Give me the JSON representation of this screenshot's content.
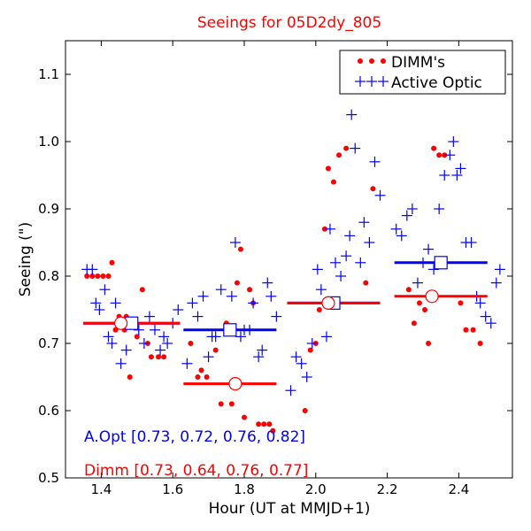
{
  "chart_data": {
    "type": "scatter",
    "title": "Seeings for 05D2dy_805",
    "xlabel": "Hour (UT at MMJD+1)",
    "ylabel": "Seeing (\")",
    "xlim": [
      1.3,
      2.55
    ],
    "ylim": [
      0.5,
      1.15
    ],
    "xticks": [
      1.4,
      1.6,
      1.8,
      2.0,
      2.2,
      2.4
    ],
    "xtick_labels": [
      "1.4",
      "1.6",
      "1.8",
      "2.0",
      "2.2",
      "2.4"
    ],
    "yticks": [
      0.5,
      0.6,
      0.7,
      0.8,
      0.9,
      1.0,
      1.1
    ],
    "ytick_labels": [
      "0.5",
      "0.6",
      "0.7",
      "0.8",
      "0.9",
      "1.0",
      "1.1"
    ],
    "legend": [
      {
        "name": "DIMM's",
        "color": "#ff0000",
        "marker": "dot"
      },
      {
        "name": "Active Optic",
        "color": "#0000ff",
        "marker": "plus"
      }
    ],
    "legend_position": "top-right",
    "series": [
      {
        "name": "DIMM's",
        "color": "#ff0000",
        "marker": "dot",
        "points": [
          [
            1.36,
            0.8
          ],
          [
            1.375,
            0.8
          ],
          [
            1.39,
            0.8
          ],
          [
            1.405,
            0.8
          ],
          [
            1.42,
            0.8
          ],
          [
            1.43,
            0.82
          ],
          [
            1.44,
            0.72
          ],
          [
            1.45,
            0.74
          ],
          [
            1.465,
            0.72
          ],
          [
            1.47,
            0.74
          ],
          [
            1.48,
            0.65
          ],
          [
            1.5,
            0.71
          ],
          [
            1.515,
            0.78
          ],
          [
            1.53,
            0.7
          ],
          [
            1.54,
            0.68
          ],
          [
            1.56,
            0.68
          ],
          [
            1.575,
            0.68
          ],
          [
            1.65,
            0.7
          ],
          [
            1.67,
            0.65
          ],
          [
            1.68,
            0.66
          ],
          [
            1.695,
            0.65
          ],
          [
            1.72,
            0.69
          ],
          [
            1.735,
            0.61
          ],
          [
            1.75,
            0.73
          ],
          [
            1.765,
            0.61
          ],
          [
            1.78,
            0.79
          ],
          [
            1.79,
            0.84
          ],
          [
            1.8,
            0.59
          ],
          [
            1.815,
            0.78
          ],
          [
            1.825,
            0.76
          ],
          [
            1.84,
            0.58
          ],
          [
            1.855,
            0.58
          ],
          [
            1.87,
            0.58
          ],
          [
            1.88,
            0.57
          ],
          [
            1.97,
            0.6
          ],
          [
            1.985,
            0.69
          ],
          [
            2.0,
            0.7
          ],
          [
            2.01,
            0.75
          ],
          [
            2.025,
            0.87
          ],
          [
            2.035,
            0.96
          ],
          [
            2.05,
            0.94
          ],
          [
            2.065,
            0.98
          ],
          [
            2.085,
            0.99
          ],
          [
            2.14,
            0.79
          ],
          [
            2.16,
            0.93
          ],
          [
            2.26,
            0.78
          ],
          [
            2.275,
            0.73
          ],
          [
            2.29,
            0.76
          ],
          [
            2.305,
            0.75
          ],
          [
            2.315,
            0.7
          ],
          [
            2.33,
            0.99
          ],
          [
            2.345,
            0.98
          ],
          [
            2.36,
            0.98
          ],
          [
            2.405,
            0.76
          ],
          [
            2.42,
            0.72
          ],
          [
            2.44,
            0.72
          ],
          [
            2.46,
            0.7
          ]
        ]
      },
      {
        "name": "Active Optic",
        "color": "#0000ff",
        "marker": "plus",
        "points": [
          [
            1.36,
            0.81
          ],
          [
            1.375,
            0.81
          ],
          [
            1.385,
            0.76
          ],
          [
            1.395,
            0.75
          ],
          [
            1.41,
            0.78
          ],
          [
            1.42,
            0.71
          ],
          [
            1.43,
            0.7
          ],
          [
            1.44,
            0.76
          ],
          [
            1.455,
            0.67
          ],
          [
            1.47,
            0.69
          ],
          [
            1.49,
            0.73
          ],
          [
            1.505,
            0.72
          ],
          [
            1.52,
            0.7
          ],
          [
            1.535,
            0.74
          ],
          [
            1.55,
            0.72
          ],
          [
            1.565,
            0.69
          ],
          [
            1.575,
            0.71
          ],
          [
            1.585,
            0.7
          ],
          [
            1.6,
            0.73
          ],
          [
            1.615,
            0.75
          ],
          [
            1.64,
            0.67
          ],
          [
            1.655,
            0.76
          ],
          [
            1.67,
            0.74
          ],
          [
            1.685,
            0.77
          ],
          [
            1.7,
            0.68
          ],
          [
            1.71,
            0.71
          ],
          [
            1.72,
            0.71
          ],
          [
            1.735,
            0.78
          ],
          [
            1.75,
            0.72
          ],
          [
            1.765,
            0.77
          ],
          [
            1.775,
            0.85
          ],
          [
            1.79,
            0.71
          ],
          [
            1.8,
            0.72
          ],
          [
            1.815,
            0.72
          ],
          [
            1.825,
            0.76
          ],
          [
            1.84,
            0.68
          ],
          [
            1.85,
            0.69
          ],
          [
            1.865,
            0.79
          ],
          [
            1.875,
            0.77
          ],
          [
            1.89,
            0.74
          ],
          [
            1.93,
            0.63
          ],
          [
            1.945,
            0.68
          ],
          [
            1.96,
            0.67
          ],
          [
            1.975,
            0.65
          ],
          [
            1.99,
            0.7
          ],
          [
            2.005,
            0.81
          ],
          [
            2.015,
            0.78
          ],
          [
            2.03,
            0.71
          ],
          [
            2.04,
            0.87
          ],
          [
            2.055,
            0.82
          ],
          [
            2.07,
            0.8
          ],
          [
            2.085,
            0.83
          ],
          [
            2.095,
            0.86
          ],
          [
            2.1,
            1.04
          ],
          [
            2.11,
            0.99
          ],
          [
            2.125,
            0.82
          ],
          [
            2.135,
            0.88
          ],
          [
            2.15,
            0.85
          ],
          [
            2.165,
            0.97
          ],
          [
            2.18,
            0.92
          ],
          [
            2.225,
            0.87
          ],
          [
            2.24,
            0.86
          ],
          [
            2.255,
            0.89
          ],
          [
            2.27,
            0.9
          ],
          [
            2.285,
            0.79
          ],
          [
            2.3,
            0.82
          ],
          [
            2.315,
            0.84
          ],
          [
            2.33,
            0.81
          ],
          [
            2.345,
            0.9
          ],
          [
            2.36,
            0.95
          ],
          [
            2.375,
            0.98
          ],
          [
            2.385,
            1.0
          ],
          [
            2.395,
            0.95
          ],
          [
            2.405,
            0.96
          ],
          [
            2.42,
            0.85
          ],
          [
            2.435,
            0.85
          ],
          [
            2.45,
            0.77
          ],
          [
            2.46,
            0.76
          ],
          [
            2.475,
            0.74
          ],
          [
            2.49,
            0.73
          ],
          [
            2.505,
            0.79
          ],
          [
            2.515,
            0.81
          ]
        ]
      }
    ],
    "segments": [
      {
        "series": "Active Optic",
        "color": "#0000ff",
        "x_start": 1.35,
        "x_end": 1.62,
        "value": 0.73,
        "marker_x": 1.485,
        "marker": "square"
      },
      {
        "series": "Active Optic",
        "color": "#0000ff",
        "x_start": 1.63,
        "x_end": 1.89,
        "value": 0.72,
        "marker_x": 1.76,
        "marker": "square"
      },
      {
        "series": "Active Optic",
        "color": "#0000ff",
        "x_start": 1.92,
        "x_end": 2.18,
        "value": 0.76,
        "marker_x": 2.05,
        "marker": "square"
      },
      {
        "series": "Active Optic",
        "color": "#0000ff",
        "x_start": 2.22,
        "x_end": 2.48,
        "value": 0.82,
        "marker_x": 2.35,
        "marker": "square"
      },
      {
        "series": "DIMM's",
        "color": "#ff0000",
        "x_start": 1.35,
        "x_end": 1.62,
        "value": 0.73,
        "marker_x": 1.455,
        "marker": "circle"
      },
      {
        "series": "DIMM's",
        "color": "#ff0000",
        "x_start": 1.63,
        "x_end": 1.89,
        "value": 0.64,
        "marker_x": 1.775,
        "marker": "circle"
      },
      {
        "series": "DIMM's",
        "color": "#ff0000",
        "x_start": 1.92,
        "x_end": 2.18,
        "value": 0.76,
        "marker_x": 2.035,
        "marker": "circle"
      },
      {
        "series": "DIMM's",
        "color": "#ff0000",
        "x_start": 2.22,
        "x_end": 2.48,
        "value": 0.77,
        "marker_x": 2.325,
        "marker": "circle"
      }
    ],
    "annotations": [
      {
        "text": "A.Opt [0.73, 0.72, 0.76, 0.82]",
        "color": "#0000ff"
      },
      {
        "text": "Dimm [0.73, 0.64, 0.76, 0.77]",
        "color": "#ff0000"
      }
    ]
  }
}
